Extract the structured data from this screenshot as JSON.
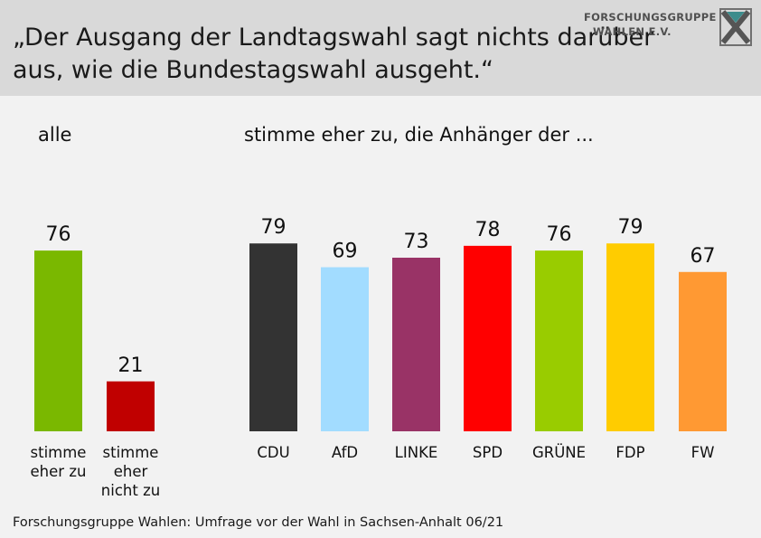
{
  "header": {
    "title": "„Der Ausgang der Landtagswahl sagt nichts darüber aus, wie die Bundestagswahl ausgeht.“",
    "logo_line1": "FORSCHUNGSGRUPPE",
    "logo_line2": "WAHLEN E.V."
  },
  "section_labels": {
    "all": "alle",
    "parties": "stimme eher zu, die Anhänger der ..."
  },
  "chart_data": {
    "type": "bar",
    "groups": [
      {
        "label": "alle",
        "categories": [
          "stimme eher zu",
          "stimme eher nicht zu"
        ],
        "category_lines": [
          [
            "stimme",
            "eher zu"
          ],
          [
            "stimme",
            "eher",
            "nicht zu"
          ]
        ],
        "values": [
          76,
          21
        ],
        "colors": [
          "#7ab800",
          "#c00000"
        ]
      },
      {
        "label": "stimme eher zu, die Anhänger der ...",
        "categories": [
          "CDU",
          "AfD",
          "LINKE",
          "SPD",
          "GRÜNE",
          "FDP",
          "FW"
        ],
        "category_lines": [
          [
            "CDU"
          ],
          [
            "AfD"
          ],
          [
            "LINKE"
          ],
          [
            "SPD"
          ],
          [
            "GRÜNE"
          ],
          [
            "FDP"
          ],
          [
            "FW"
          ]
        ],
        "values": [
          79,
          69,
          73,
          78,
          76,
          79,
          67
        ],
        "colors": [
          "#333333",
          "#a2dcff",
          "#993366",
          "#ff0000",
          "#99cc00",
          "#ffcc00",
          "#ff9933"
        ]
      }
    ],
    "ylim": [
      0,
      100
    ],
    "grid": false,
    "legend": "none"
  },
  "footer": {
    "source": "Forschungsgruppe Wahlen: Umfrage vor der Wahl in Sachsen-Anhalt 06/21"
  }
}
